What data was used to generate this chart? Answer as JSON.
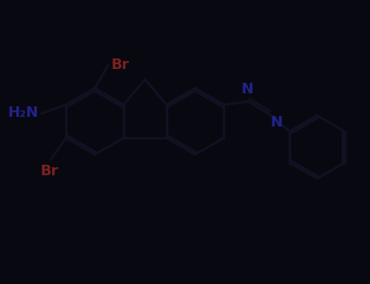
{
  "background_color": "#080810",
  "bond_color": "#111122",
  "label_bond_color": "#111122",
  "br_color": "#7a2020",
  "n_color": "#22228a",
  "bond_width": 2.2,
  "br_fontsize": 13,
  "n_fontsize": 13,
  "nh2_fontsize": 13,
  "xlim": [
    0,
    9.1
  ],
  "ylim": [
    0,
    7.0
  ],
  "C9x": 3.55,
  "C9y": 5.05,
  "bl": 0.82,
  "ang5": 40,
  "sl": 0.65,
  "ph_r": 0.78
}
